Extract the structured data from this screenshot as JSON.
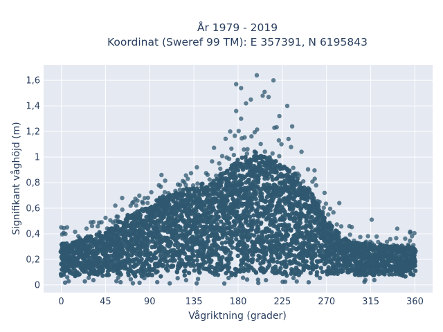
{
  "chart_data": {
    "type": "scatter",
    "title_line1": "År 1979 - 2019",
    "title_line2": "Koordinat (Sweref 99 TM): E 357391, N 6195843",
    "xlabel": "Vågriktning (grader)",
    "ylabel": "Signifikant våghöjd (m)",
    "xlim": [
      -18,
      378
    ],
    "ylim": [
      -0.06,
      1.72
    ],
    "x_ticks": [
      0,
      45,
      90,
      135,
      180,
      225,
      270,
      315,
      360
    ],
    "x_tick_labels": [
      "0",
      "45",
      "90",
      "135",
      "180",
      "225",
      "270",
      "315",
      "360"
    ],
    "y_ticks": [
      0,
      0.2,
      0.4,
      0.6,
      0.8,
      1.0,
      1.2,
      1.4,
      1.6
    ],
    "y_tick_labels": [
      "0",
      "0,2",
      "0,4",
      "0,6",
      "0,8",
      "1",
      "1,2",
      "1,4",
      "1,6"
    ],
    "grid": true,
    "marker_color": "#2f5870",
    "plot_background": "#e5e9f2",
    "envelope": {
      "direction_deg": [
        0,
        15,
        30,
        45,
        60,
        75,
        90,
        105,
        120,
        135,
        150,
        165,
        180,
        195,
        210,
        225,
        240,
        255,
        270,
        285,
        300,
        315,
        330,
        345,
        360
      ],
      "typical_upper_height_m": [
        0.33,
        0.34,
        0.38,
        0.42,
        0.5,
        0.58,
        0.64,
        0.7,
        0.74,
        0.76,
        0.8,
        0.88,
        0.98,
        1.04,
        1.0,
        0.94,
        0.86,
        0.72,
        0.52,
        0.38,
        0.33,
        0.32,
        0.31,
        0.3,
        0.3
      ],
      "typical_lower_height_m": 0.07
    },
    "notable_points": [
      {
        "x": 199,
        "y": 1.64
      },
      {
        "x": 216,
        "y": 1.6
      },
      {
        "x": 178,
        "y": 1.57
      },
      {
        "x": 183,
        "y": 1.54
      },
      {
        "x": 207,
        "y": 1.51
      },
      {
        "x": 205,
        "y": 1.48
      },
      {
        "x": 211,
        "y": 1.47
      },
      {
        "x": 193,
        "y": 1.45
      },
      {
        "x": 230,
        "y": 1.4
      },
      {
        "x": 188,
        "y": 1.42
      },
      {
        "x": 178,
        "y": 1.36
      },
      {
        "x": 222,
        "y": 1.32
      },
      {
        "x": 183,
        "y": 1.3
      },
      {
        "x": 235,
        "y": 1.24
      },
      {
        "x": 172,
        "y": 1.2
      },
      {
        "x": 138,
        "y": 0.92
      },
      {
        "x": 102,
        "y": 0.86
      },
      {
        "x": 55,
        "y": 0.62
      },
      {
        "x": 62,
        "y": 0.68
      },
      {
        "x": 283,
        "y": 0.64
      },
      {
        "x": 316,
        "y": 0.51
      },
      {
        "x": 0,
        "y": 0.45
      },
      {
        "x": 342,
        "y": 0.44
      },
      {
        "x": 355,
        "y": 0.41
      },
      {
        "x": 258,
        "y": 0.83
      },
      {
        "x": 268,
        "y": 0.72
      }
    ]
  }
}
